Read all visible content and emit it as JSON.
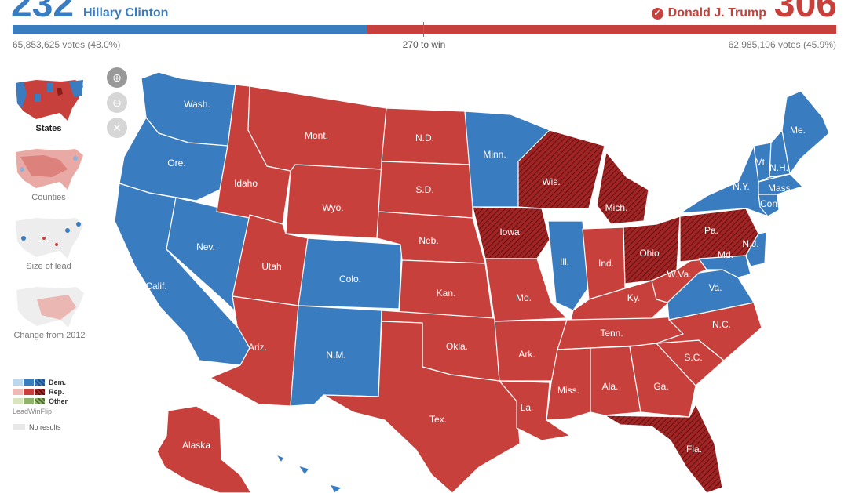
{
  "header": {
    "dem_ev": "232",
    "dem_name": "Hillary Clinton",
    "dem_votes": "65,853,625 votes (48.0%)",
    "rep_ev": "306",
    "rep_name": "Donald J. Trump",
    "rep_votes": "62,985,106 votes (45.9%)",
    "to_win": "270 to win"
  },
  "views": [
    {
      "label": "States",
      "selected": true
    },
    {
      "label": "Counties",
      "selected": false
    },
    {
      "label": "Size of lead",
      "selected": false
    },
    {
      "label": "Change from 2012",
      "selected": false
    }
  ],
  "zoom_controls": [
    "zoom-in-icon",
    "zoom-out-icon",
    "close-icon"
  ],
  "legend": {
    "dem": "Dem.",
    "rep": "Rep.",
    "other": "Other",
    "sub": "LeadWinFlip",
    "no_results": "No results",
    "colors": {
      "dem_lead": "#bcd7ec",
      "dem_win": "#3a7cc0",
      "rep_lead": "#f0b9b5",
      "rep_win": "#c8403c",
      "flip": "#8b1c1c",
      "other_lead": "#d8e6c0",
      "other_win": "#8fb36b",
      "no_results": "#e8e8e8"
    }
  },
  "colors": {
    "dem": "#3a7cc0",
    "rep": "#c8403c",
    "flip": "#8b1c1c"
  },
  "states": [
    {
      "abbr": "Wash.",
      "party": "dem"
    },
    {
      "abbr": "Ore.",
      "party": "dem"
    },
    {
      "abbr": "Calif.",
      "party": "dem"
    },
    {
      "abbr": "Nev.",
      "party": "dem"
    },
    {
      "abbr": "Idaho",
      "party": "rep"
    },
    {
      "abbr": "Mont.",
      "party": "rep"
    },
    {
      "abbr": "Wyo.",
      "party": "rep"
    },
    {
      "abbr": "Utah",
      "party": "rep"
    },
    {
      "abbr": "Ariz.",
      "party": "rep"
    },
    {
      "abbr": "Colo.",
      "party": "dem"
    },
    {
      "abbr": "N.M.",
      "party": "dem"
    },
    {
      "abbr": "N.D.",
      "party": "rep"
    },
    {
      "abbr": "S.D.",
      "party": "rep"
    },
    {
      "abbr": "Neb.",
      "party": "rep"
    },
    {
      "abbr": "Kan.",
      "party": "rep"
    },
    {
      "abbr": "Okla.",
      "party": "rep"
    },
    {
      "abbr": "Tex.",
      "party": "rep"
    },
    {
      "abbr": "Minn.",
      "party": "dem"
    },
    {
      "abbr": "Iowa",
      "party": "flip"
    },
    {
      "abbr": "Mo.",
      "party": "rep"
    },
    {
      "abbr": "Ark.",
      "party": "rep"
    },
    {
      "abbr": "La.",
      "party": "rep"
    },
    {
      "abbr": "Wis.",
      "party": "flip"
    },
    {
      "abbr": "Ill.",
      "party": "dem"
    },
    {
      "abbr": "Mich.",
      "party": "flip"
    },
    {
      "abbr": "Ind.",
      "party": "rep"
    },
    {
      "abbr": "Ohio",
      "party": "flip"
    },
    {
      "abbr": "Ky.",
      "party": "rep"
    },
    {
      "abbr": "Tenn.",
      "party": "rep"
    },
    {
      "abbr": "Miss.",
      "party": "rep"
    },
    {
      "abbr": "Ala.",
      "party": "rep"
    },
    {
      "abbr": "Ga.",
      "party": "rep"
    },
    {
      "abbr": "Fla.",
      "party": "flip"
    },
    {
      "abbr": "S.C.",
      "party": "rep"
    },
    {
      "abbr": "N.C.",
      "party": "rep"
    },
    {
      "abbr": "Va.",
      "party": "dem"
    },
    {
      "abbr": "W.Va.",
      "party": "rep"
    },
    {
      "abbr": "Pa.",
      "party": "flip"
    },
    {
      "abbr": "N.Y.",
      "party": "dem"
    },
    {
      "abbr": "Md.",
      "party": "dem"
    },
    {
      "abbr": "N.J.",
      "party": "dem"
    },
    {
      "abbr": "Vt.",
      "party": "dem"
    },
    {
      "abbr": "N.H.",
      "party": "dem"
    },
    {
      "abbr": "Mass.",
      "party": "dem"
    },
    {
      "abbr": "Conn.",
      "party": "dem"
    },
    {
      "abbr": "Me.",
      "party": "dem"
    },
    {
      "abbr": "Alaska",
      "party": "rep"
    }
  ]
}
